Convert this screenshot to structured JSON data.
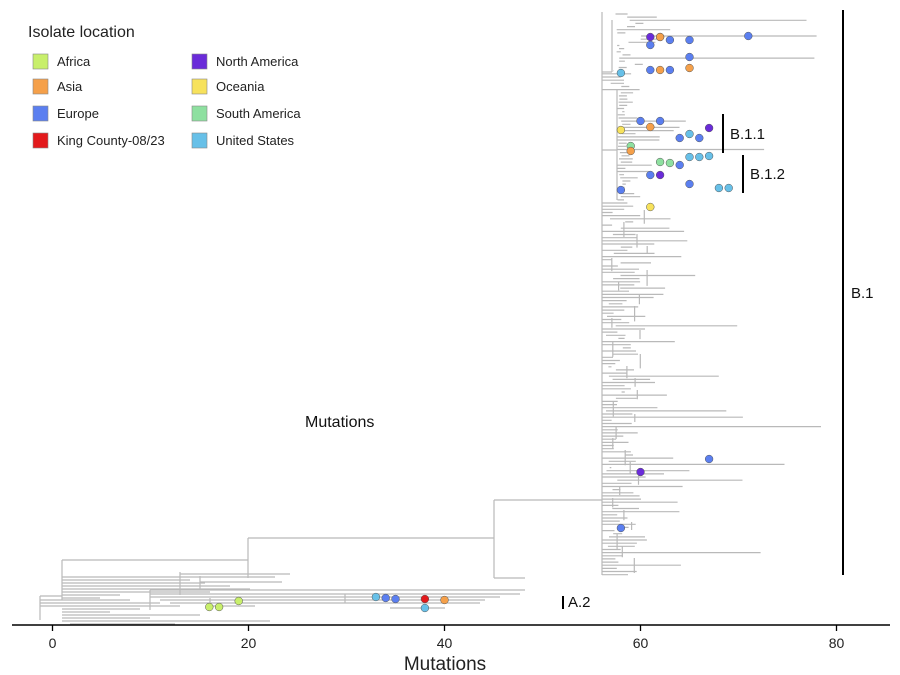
{
  "chart_data": {
    "type": "phylogenetic-tree",
    "xlabel": "Mutations",
    "annotation": "Mutations",
    "xlim": [
      -1,
      85
    ],
    "ticks": [
      0,
      20,
      40,
      60,
      80
    ],
    "tick_labels": [
      "0",
      "20",
      "40",
      "60",
      "80"
    ],
    "legend": {
      "title": "Isolate location",
      "placement": "top-left",
      "entries": [
        {
          "label": "Africa",
          "color": "#c8ef6b"
        },
        {
          "label": "Asia",
          "color": "#f5a04a"
        },
        {
          "label": "Europe",
          "color": "#5b7ff0"
        },
        {
          "label": "King County-08/23",
          "color": "#e31a1c"
        },
        {
          "label": "North America",
          "color": "#6a2bd9"
        },
        {
          "label": "Oceania",
          "color": "#f7e25c"
        },
        {
          "label": "South America",
          "color": "#8ee0a0"
        },
        {
          "label": "United States",
          "color": "#67c0e8"
        }
      ]
    },
    "clades": [
      {
        "label": "B.1",
        "x": 81
      },
      {
        "label": "B.1.1",
        "x": 67.5
      },
      {
        "label": "B.1.2",
        "x": 70
      },
      {
        "label": "A.2",
        "x": 52
      }
    ],
    "tips": [
      {
        "x": 62,
        "loc": "Europe"
      },
      {
        "x": 62,
        "loc": "Asia"
      },
      {
        "x": 61,
        "loc": "North America"
      },
      {
        "x": 71,
        "loc": "Europe"
      },
      {
        "x": 63,
        "loc": "Europe"
      },
      {
        "x": 65,
        "loc": "Europe"
      },
      {
        "x": 61,
        "loc": "Europe"
      },
      {
        "x": 65,
        "loc": "Europe"
      },
      {
        "x": 65,
        "loc": "Asia"
      },
      {
        "x": 61,
        "loc": "Europe"
      },
      {
        "x": 63,
        "loc": "Europe"
      },
      {
        "x": 62,
        "loc": "Asia"
      },
      {
        "x": 58,
        "loc": "United States"
      },
      {
        "x": 60,
        "loc": "Europe"
      },
      {
        "x": 62,
        "loc": "Europe"
      },
      {
        "x": 67,
        "loc": "North America"
      },
      {
        "x": 61,
        "loc": "Asia"
      },
      {
        "x": 58,
        "loc": "Oceania"
      },
      {
        "x": 65,
        "loc": "United States"
      },
      {
        "x": 66,
        "loc": "Europe"
      },
      {
        "x": 64,
        "loc": "Europe"
      },
      {
        "x": 59,
        "loc": "South America"
      },
      {
        "x": 59,
        "loc": "Asia"
      },
      {
        "x": 65,
        "loc": "United States"
      },
      {
        "x": 66,
        "loc": "United States"
      },
      {
        "x": 67,
        "loc": "United States"
      },
      {
        "x": 62,
        "loc": "South America"
      },
      {
        "x": 63,
        "loc": "South America"
      },
      {
        "x": 64,
        "loc": "Europe"
      },
      {
        "x": 62,
        "loc": "North America"
      },
      {
        "x": 68,
        "loc": "United States"
      },
      {
        "x": 69,
        "loc": "United States"
      },
      {
        "x": 65,
        "loc": "Europe"
      },
      {
        "x": 58,
        "loc": "Europe"
      },
      {
        "x": 61,
        "loc": "Oceania"
      },
      {
        "x": 61,
        "loc": "Europe"
      },
      {
        "x": 67,
        "loc": "Europe"
      },
      {
        "x": 60,
        "loc": "North America"
      },
      {
        "x": 58,
        "loc": "Europe"
      },
      {
        "x": 16,
        "loc": "Africa"
      },
      {
        "x": 17,
        "loc": "Africa"
      },
      {
        "x": 19,
        "loc": "Africa"
      },
      {
        "x": 33,
        "loc": "United States"
      },
      {
        "x": 34,
        "loc": "Europe"
      },
      {
        "x": 35,
        "loc": "Europe"
      },
      {
        "x": 38,
        "loc": "King County-08/23"
      },
      {
        "x": 38,
        "loc": "United States"
      },
      {
        "x": 40,
        "loc": "Asia"
      }
    ]
  }
}
